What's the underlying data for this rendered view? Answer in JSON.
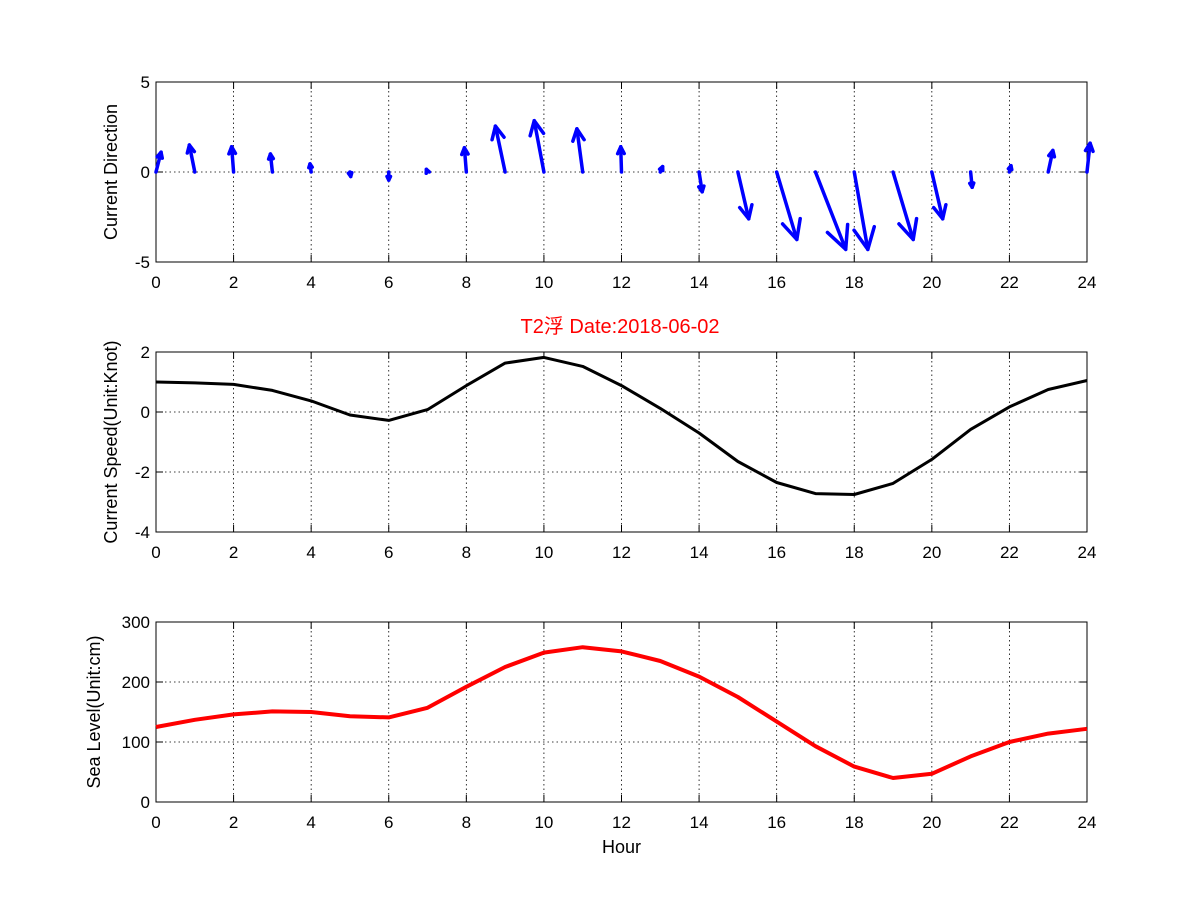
{
  "title": "T2浮    Date:2018-06-02",
  "colors": {
    "direction": "#0000ff",
    "speed": "#000000",
    "sea_level": "#ff0000",
    "title": "#ff0000"
  },
  "chart_data": [
    {
      "type": "quiver",
      "ylabel": "Current Direction",
      "xlabel": "",
      "xlim": [
        0,
        24
      ],
      "ylim": [
        -5,
        5
      ],
      "xticks": [
        0,
        2,
        4,
        6,
        8,
        10,
        12,
        14,
        16,
        18,
        20,
        22,
        24
      ],
      "yticks": [
        -5,
        0,
        5
      ],
      "grid": true,
      "x": [
        0,
        1,
        2,
        3,
        4,
        5,
        6,
        7,
        8,
        9,
        10,
        11,
        12,
        13,
        14,
        15,
        16,
        17,
        18,
        19,
        20,
        21,
        22,
        23,
        24
      ],
      "u": [
        0.13,
        -0.14,
        -0.05,
        -0.05,
        -0.03,
        0.02,
        0.0,
        -0.03,
        -0.05,
        -0.25,
        -0.25,
        -0.15,
        -0.02,
        0.06,
        0.08,
        0.28,
        0.52,
        0.78,
        0.35,
        0.52,
        0.28,
        0.04,
        0.04,
        0.12,
        0.08
      ],
      "v": [
        1.1,
        1.5,
        1.4,
        1.0,
        0.45,
        -0.25,
        -0.45,
        0.15,
        1.35,
        2.55,
        2.85,
        2.4,
        1.4,
        0.3,
        -1.1,
        -2.6,
        -3.75,
        -4.3,
        -4.3,
        -3.75,
        -2.6,
        -0.85,
        0.35,
        1.2,
        1.6
      ]
    },
    {
      "type": "line",
      "ylabel": "Current Speed(Unit:Knot)",
      "xlabel": "",
      "xlim": [
        0,
        24
      ],
      "ylim": [
        -4,
        2
      ],
      "xticks": [
        0,
        2,
        4,
        6,
        8,
        10,
        12,
        14,
        16,
        18,
        20,
        22,
        24
      ],
      "yticks": [
        -4,
        -2,
        0,
        2
      ],
      "grid": true,
      "x": [
        0,
        1,
        2,
        3,
        4,
        5,
        6,
        7,
        8,
        9,
        10,
        11,
        12,
        13,
        14,
        15,
        16,
        17,
        18,
        19,
        20,
        21,
        22,
        23,
        24
      ],
      "series": [
        {
          "values": [
            1.0,
            0.97,
            0.92,
            0.72,
            0.37,
            -0.1,
            -0.28,
            0.08,
            0.88,
            1.63,
            1.82,
            1.52,
            0.88,
            0.12,
            -0.7,
            -1.65,
            -2.35,
            -2.72,
            -2.75,
            -2.38,
            -1.58,
            -0.58,
            0.17,
            0.75,
            1.05
          ]
        }
      ]
    },
    {
      "type": "line",
      "ylabel": "Sea Level(Unit:cm)",
      "xlabel": "Hour",
      "xlim": [
        0,
        24
      ],
      "ylim": [
        0,
        300
      ],
      "xticks": [
        0,
        2,
        4,
        6,
        8,
        10,
        12,
        14,
        16,
        18,
        20,
        22,
        24
      ],
      "yticks": [
        0,
        100,
        200,
        300
      ],
      "grid": true,
      "x": [
        0,
        1,
        2,
        3,
        4,
        5,
        6,
        7,
        8,
        9,
        10,
        11,
        12,
        13,
        14,
        15,
        16,
        17,
        18,
        19,
        20,
        21,
        22,
        23,
        24
      ],
      "series": [
        {
          "values": [
            125,
            137,
            146,
            151,
            150,
            143,
            141,
            157,
            192,
            225,
            249,
            258,
            251,
            235,
            209,
            175,
            134,
            93,
            59,
            40,
            47,
            76,
            100,
            114,
            122
          ]
        }
      ]
    }
  ]
}
